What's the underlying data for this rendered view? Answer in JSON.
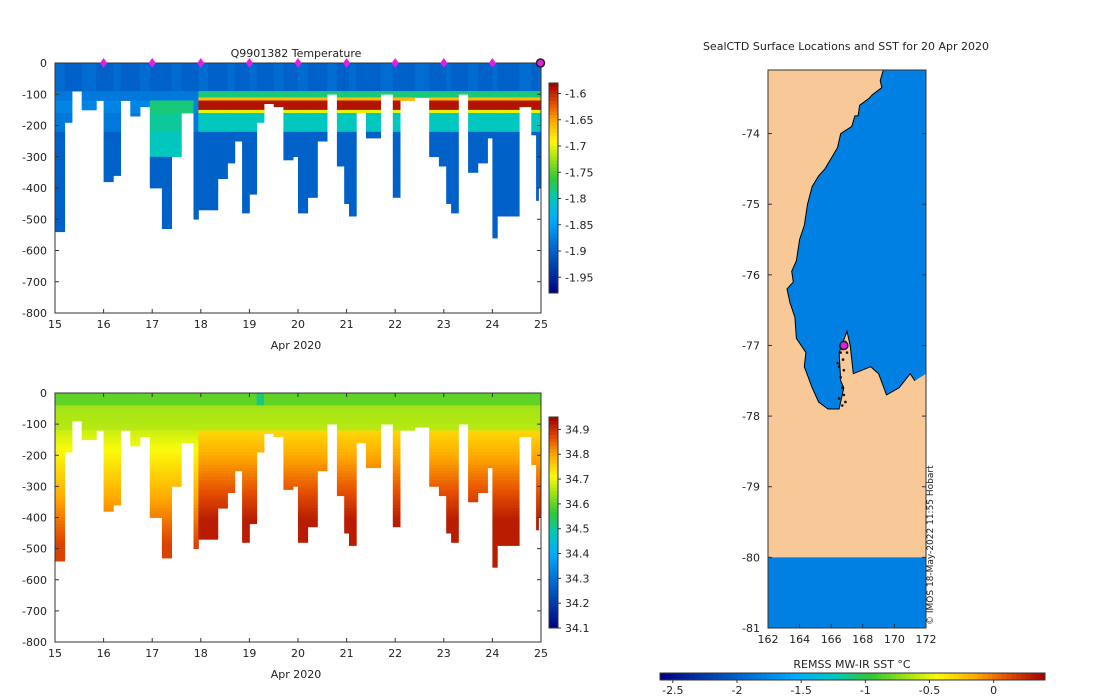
{
  "chart_data": [
    {
      "type": "heatmap",
      "title": "Q9901382  Temperature",
      "xlabel": "Apr 2020",
      "ylabel": "",
      "xlim": [
        15,
        25
      ],
      "ylim": [
        -800,
        0
      ],
      "xticks": [
        "15",
        "16",
        "17",
        "18",
        "19",
        "20",
        "21",
        "22",
        "23",
        "24",
        "25"
      ],
      "yticks": [
        "0",
        "-100",
        "-200",
        "-300",
        "-400",
        "-500",
        "-600",
        "-700",
        "-800"
      ],
      "colorbar": {
        "min": -1.98,
        "max": -1.58,
        "ticks": [
          "-1.6",
          "-1.65",
          "-1.7",
          "-1.75",
          "-1.8",
          "-1.85",
          "-1.9",
          "-1.95"
        ],
        "tick_values": [
          -1.6,
          -1.65,
          -1.7,
          -1.75,
          -1.8,
          -1.85,
          -1.9,
          -1.95
        ]
      },
      "surfacing_markers_x": [
        16,
        17,
        18,
        19,
        20,
        21,
        22,
        23,
        24
      ],
      "latest_marker_x": 25,
      "profile_days": [
        15.0,
        15.2,
        15.35,
        15.55,
        15.85,
        16.0,
        16.2,
        16.35,
        16.55,
        16.75,
        16.95,
        17.2,
        17.4,
        17.6,
        17.85,
        17.95,
        18.15,
        18.35,
        18.55,
        18.7,
        18.85,
        19.0,
        19.15,
        19.3,
        19.5,
        19.7,
        19.9,
        20.0,
        20.2,
        20.4,
        20.6,
        20.8,
        20.95,
        21.05,
        21.2,
        21.4,
        21.7,
        21.95,
        22.1,
        22.4,
        22.7,
        22.9,
        23.05,
        23.15,
        23.3,
        23.5,
        23.7,
        23.9,
        24.0,
        24.1,
        24.3,
        24.55,
        24.8,
        24.9,
        24.95
      ],
      "profile_max_depth": [
        540,
        190,
        90,
        150,
        120,
        380,
        360,
        120,
        170,
        140,
        400,
        530,
        300,
        160,
        500,
        470,
        470,
        370,
        320,
        250,
        480,
        420,
        190,
        130,
        140,
        310,
        300,
        480,
        430,
        250,
        100,
        330,
        450,
        490,
        160,
        240,
        100,
        430,
        120,
        110,
        300,
        330,
        450,
        480,
        100,
        350,
        320,
        240,
        560,
        490,
        490,
        140,
        230,
        440,
        400
      ],
      "layers": [
        {
          "depth": [
            0,
            100
          ],
          "value": -1.9
        },
        {
          "depth": [
            100,
            140
          ],
          "value": -1.72
        },
        {
          "depth": [
            140,
            170
          ],
          "value": -1.6
        },
        {
          "depth": [
            170,
            220
          ],
          "value": -1.8
        },
        {
          "depth": [
            220,
            800
          ],
          "value": -1.9
        }
      ]
    },
    {
      "type": "heatmap",
      "title": "",
      "xlabel": "Apr 2020",
      "ylabel": "",
      "xlim": [
        15,
        25
      ],
      "ylim": [
        -800,
        0
      ],
      "xticks": [
        "15",
        "16",
        "17",
        "18",
        "19",
        "20",
        "21",
        "22",
        "23",
        "24",
        "25"
      ],
      "yticks": [
        "0",
        "-100",
        "-200",
        "-300",
        "-400",
        "-500",
        "-600",
        "-700",
        "-800"
      ],
      "colorbar": {
        "min": 34.1,
        "max": 34.95,
        "ticks": [
          "34.9",
          "34.8",
          "34.7",
          "34.6",
          "34.5",
          "34.4",
          "34.3",
          "34.2",
          "34.1"
        ],
        "tick_values": [
          34.9,
          34.8,
          34.7,
          34.6,
          34.5,
          34.4,
          34.3,
          34.2,
          34.1
        ]
      },
      "profile_days": [
        15.0,
        15.2,
        15.35,
        15.55,
        15.85,
        16.0,
        16.2,
        16.35,
        16.55,
        16.75,
        16.95,
        17.2,
        17.4,
        17.6,
        17.85,
        17.95,
        18.15,
        18.35,
        18.55,
        18.7,
        18.85,
        19.0,
        19.15,
        19.3,
        19.5,
        19.7,
        19.9,
        20.0,
        20.2,
        20.4,
        20.6,
        20.8,
        20.95,
        21.05,
        21.2,
        21.4,
        21.7,
        21.95,
        22.1,
        22.4,
        22.7,
        22.9,
        23.05,
        23.15,
        23.3,
        23.5,
        23.7,
        23.9,
        24.0,
        24.1,
        24.3,
        24.55,
        24.8,
        24.9,
        24.95
      ],
      "profile_max_depth": [
        540,
        190,
        90,
        150,
        120,
        380,
        360,
        120,
        170,
        140,
        400,
        530,
        300,
        160,
        500,
        470,
        470,
        370,
        320,
        250,
        480,
        420,
        190,
        130,
        140,
        310,
        300,
        480,
        430,
        250,
        100,
        330,
        450,
        490,
        160,
        240,
        100,
        430,
        120,
        110,
        300,
        330,
        450,
        480,
        100,
        350,
        320,
        240,
        560,
        490,
        490,
        140,
        230,
        440,
        400
      ],
      "surface_value": 34.62,
      "deep_value": 34.92
    },
    {
      "type": "heatmap",
      "title": "SealCTD Surface Locations and SST for 20 Apr 2020",
      "xlabel": "",
      "ylabel": "",
      "xlim": [
        162,
        172
      ],
      "ylim": [
        -81,
        -73.1
      ],
      "xticks": [
        "162",
        "164",
        "166",
        "168",
        "170",
        "172"
      ],
      "xtick_values": [
        162,
        164,
        166,
        168,
        170,
        172
      ],
      "yticks": [
        "-74",
        "-75",
        "-76",
        "-77",
        "-78",
        "-79",
        "-80",
        "-81"
      ],
      "ytick_values": [
        -74,
        -75,
        -76,
        -77,
        -78,
        -79,
        -80,
        -81
      ],
      "land_color": "#f8c996",
      "ocean_sst_value": -1.8,
      "coastline": [
        [
          162,
          -73.1
        ],
        [
          169.3,
          -73.1
        ],
        [
          169.1,
          -73.25
        ],
        [
          169.2,
          -73.35
        ],
        [
          168.6,
          -73.45
        ],
        [
          168.4,
          -73.5
        ],
        [
          167.8,
          -73.6
        ],
        [
          167.7,
          -73.75
        ],
        [
          167.5,
          -73.75
        ],
        [
          167.3,
          -73.9
        ],
        [
          166.6,
          -74.0
        ],
        [
          166.4,
          -74.2
        ],
        [
          165.6,
          -74.5
        ],
        [
          165.2,
          -74.6
        ],
        [
          164.8,
          -74.75
        ],
        [
          164.5,
          -75.0
        ],
        [
          164.3,
          -75.3
        ],
        [
          164.0,
          -75.5
        ],
        [
          163.8,
          -75.8
        ],
        [
          163.5,
          -75.95
        ],
        [
          163.6,
          -76.1
        ],
        [
          163.2,
          -76.2
        ],
        [
          163.4,
          -76.4
        ],
        [
          163.7,
          -76.6
        ],
        [
          163.8,
          -76.9
        ],
        [
          164.4,
          -77.1
        ],
        [
          164.3,
          -77.3
        ],
        [
          164.8,
          -77.6
        ],
        [
          165.2,
          -77.8
        ],
        [
          165.8,
          -77.9
        ],
        [
          166.5,
          -77.9
        ],
        [
          166.8,
          -77.6
        ],
        [
          166.6,
          -77.5
        ],
        [
          166.5,
          -77.1
        ],
        [
          167.0,
          -76.8
        ],
        [
          167.2,
          -77.0
        ],
        [
          167.4,
          -77.4
        ],
        [
          168.5,
          -77.3
        ],
        [
          169.0,
          -77.4
        ],
        [
          169.5,
          -77.7
        ],
        [
          170.3,
          -77.6
        ],
        [
          171.0,
          -77.4
        ],
        [
          171.3,
          -77.5
        ],
        [
          172,
          -77.4
        ],
        [
          172,
          -81
        ],
        [
          162,
          -81
        ]
      ],
      "ross_sea_ocean_south": [
        [
          162,
          -80
        ],
        [
          172,
          -80
        ],
        [
          172,
          -81
        ],
        [
          162,
          -81
        ]
      ],
      "track_points": [
        [
          166.7,
          -77.05
        ],
        [
          166.6,
          -77.1
        ],
        [
          166.75,
          -77.2
        ],
        [
          166.5,
          -77.3
        ],
        [
          166.6,
          -77.45
        ],
        [
          166.7,
          -77.6
        ],
        [
          166.8,
          -77.7
        ],
        [
          166.5,
          -77.75
        ],
        [
          166.9,
          -77.8
        ],
        [
          166.7,
          -77.85
        ],
        [
          166.4,
          -77.25
        ],
        [
          166.9,
          -76.95
        ],
        [
          167.0,
          -77.1
        ],
        [
          166.8,
          -77.35
        ]
      ],
      "current_location": [
        166.8,
        -77.0
      ],
      "colorbar": {
        "label": "REMSS MW-IR SST °C",
        "min": -2.6,
        "max": 0.4,
        "ticks": [
          "-2.5",
          "-2",
          "-1.5",
          "-1",
          "-0.5",
          "0"
        ],
        "tick_values": [
          -2.5,
          -2,
          -1.5,
          -1,
          -0.5,
          0
        ]
      },
      "credit": "© IMOS 18-May-2022 11:55 Hobart"
    }
  ]
}
